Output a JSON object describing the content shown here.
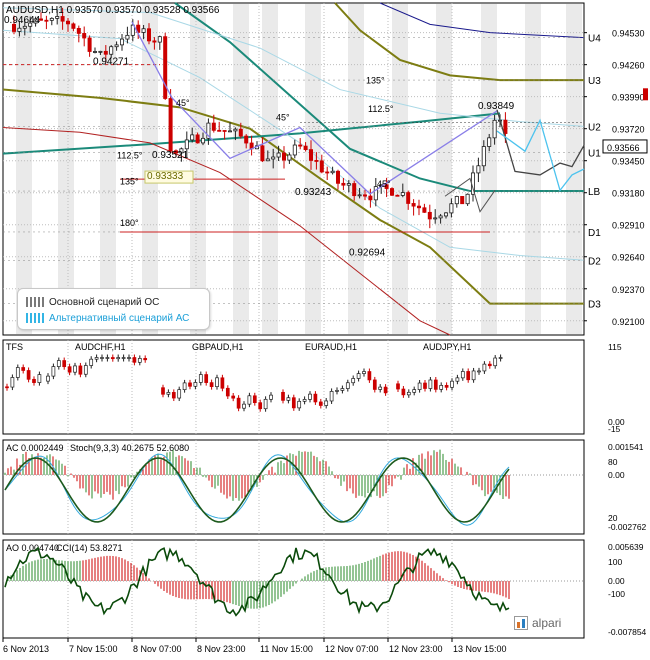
{
  "chart_data": {
    "type": "candlestick",
    "title": "AUDUSD,H1  0.93570 0.93570 0.93528 0.93566",
    "symbol": "AUDUSD,H1",
    "ohlc_readout": [
      "0.93570",
      "0.93570",
      "0.93528",
      "0.93566"
    ],
    "current_price": "0.93566",
    "price_axis_labels": [
      "0.94530",
      "0.94260",
      "0.93990",
      "0.93720",
      "0.93450",
      "0.93180",
      "0.92910",
      "0.92640",
      "0.92370",
      "0.92100"
    ],
    "y_range": [
      0.9198,
      0.9478
    ],
    "level_labels": [
      {
        "name": "U4",
        "price": 0.94488
      },
      {
        "name": "U3",
        "price": 0.9413
      },
      {
        "name": "U2",
        "price": 0.93739
      },
      {
        "name": "U1",
        "price": 0.93521
      },
      {
        "name": "LB",
        "price": 0.93194
      },
      {
        "name": "D1",
        "price": 0.92849
      },
      {
        "name": "D2",
        "price": 0.9261
      },
      {
        "name": "D3",
        "price": 0.92245
      }
    ],
    "price_annotations": [
      {
        "text": "0.94644",
        "price": 0.9461
      },
      {
        "text": "0.94271",
        "price": 0.9426
      },
      {
        "text": "0.93849",
        "price": 0.93885
      },
      {
        "text": "0.93521",
        "price": 0.93473
      },
      {
        "text": "0.93333",
        "price": 0.93295,
        "boxed": true
      },
      {
        "text": "0.93243",
        "price": 0.9316
      },
      {
        "text": "0.92694",
        "price": 0.9265
      }
    ],
    "angle_labels": [
      "45°",
      "45°",
      "112.5°",
      "135°",
      "112.5°",
      "135°",
      "180°",
      "45°"
    ],
    "x_tick_labels": [
      "6 Nov 2013",
      "7 Nov 15:00",
      "8 Nov 07:00",
      "8 Nov 23:00",
      "11 Nov 15:00",
      "12 Nov 07:00",
      "12 Nov 23:00",
      "13 Nov 15:00"
    ],
    "legend": [
      {
        "name": "Основной сценарий ОС",
        "color": "#7a7a7a"
      },
      {
        "name": "Альтернативный сценарий АС",
        "color": "#33b5e5"
      }
    ],
    "pattern_points": {
      "main_path": [
        0.9462,
        0.9398,
        0.9347,
        0.9373,
        0.9317,
        0.9387
      ],
      "scenario_main": [
        0.9388,
        0.9336,
        0.9333,
        0.9343,
        0.934,
        0.9358
      ],
      "scenario_alt": [
        0.937,
        0.9353,
        0.9379,
        0.932,
        0.9333,
        0.9338
      ]
    },
    "panels": [
      {
        "name": "correlation",
        "labels": [
          "TFS",
          "AUDCHF,H1",
          "GBPAUD,H1",
          "EURAUD,H1",
          "AUDJPY,H1"
        ],
        "axis_labels": [
          "115",
          "0.00",
          "-15"
        ]
      },
      {
        "name": "ac_stoch",
        "labels": [
          "AC 0.0002449",
          "Stoch(9,3,3) 40.2675 52.6080"
        ],
        "axis_labels": [
          "0.001541",
          "80",
          "0.00",
          "20",
          "-0.002762"
        ]
      },
      {
        "name": "ao_cci",
        "labels": [
          "AO 0.004740",
          "CCI(14) 53.8271"
        ],
        "axis_labels": [
          "0.005639",
          "100",
          "0.00",
          "-100",
          "-0.007854"
        ]
      }
    ]
  },
  "logo": {
    "text": "alpari"
  },
  "colors": {
    "bull": "#1f1f1f",
    "bear": "#cc0000",
    "grid": "#bdbdbd",
    "session_band": "#e6e6e6",
    "ma_teal": "#1b8a7a",
    "ma_olive": "#7d7d12",
    "ma_red": "#b22222",
    "ma_navy": "#1a1a8c",
    "band_light": "#a9d8e6",
    "pattern": "#8a7fe8",
    "stoch_main": "#1d5a1d",
    "stoch_signal": "#33aadd",
    "cci": "#0a4a0a"
  }
}
